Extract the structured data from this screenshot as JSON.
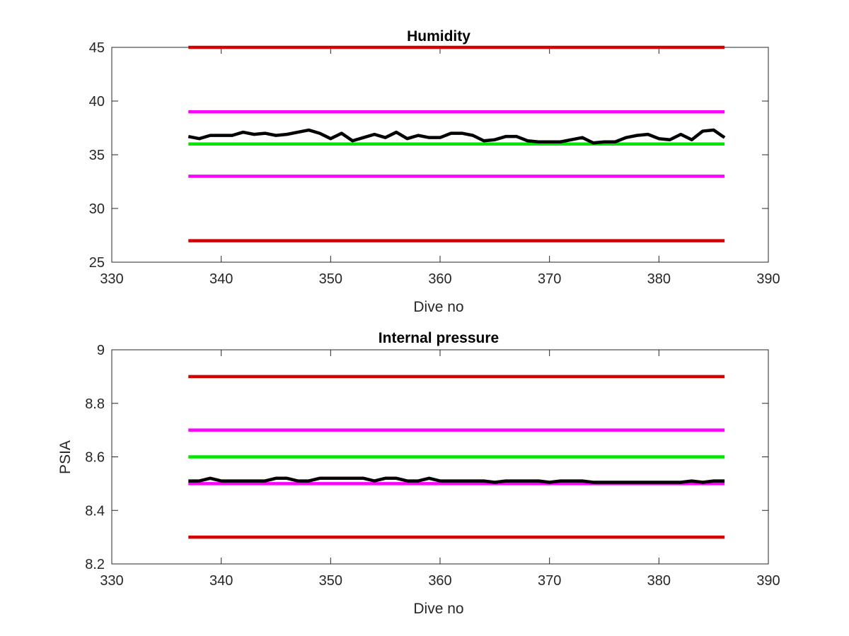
{
  "chart_data": [
    {
      "type": "line",
      "title": "Humidity",
      "xlabel": "Dive no",
      "ylabel": "",
      "xlim": [
        330,
        390
      ],
      "ylim": [
        25,
        45
      ],
      "xticks": [
        330,
        340,
        350,
        360,
        370,
        380,
        390
      ],
      "yticks": [
        25,
        30,
        35,
        40,
        45
      ],
      "grid": false,
      "series": [
        {
          "color": "#d40000",
          "x": [
            337,
            386
          ],
          "y": [
            45,
            45
          ]
        },
        {
          "color": "#ff00ff",
          "x": [
            337,
            386
          ],
          "y": [
            39,
            39
          ]
        },
        {
          "color": "#00e600",
          "x": [
            337,
            386
          ],
          "y": [
            36,
            36
          ]
        },
        {
          "color": "#ff00ff",
          "x": [
            337,
            386
          ],
          "y": [
            33,
            33
          ]
        },
        {
          "color": "#d40000",
          "x": [
            337,
            386
          ],
          "y": [
            27,
            27
          ]
        },
        {
          "color": "#000000",
          "x": [
            337,
            338,
            339,
            340,
            341,
            342,
            343,
            344,
            345,
            346,
            347,
            348,
            349,
            350,
            351,
            352,
            353,
            354,
            355,
            356,
            357,
            358,
            359,
            360,
            361,
            362,
            363,
            364,
            365,
            366,
            367,
            368,
            369,
            370,
            371,
            372,
            373,
            374,
            375,
            376,
            377,
            378,
            379,
            380,
            381,
            382,
            383,
            384,
            385,
            386
          ],
          "y": [
            36.7,
            36.5,
            36.8,
            36.8,
            36.8,
            37.1,
            36.9,
            37.0,
            36.8,
            36.9,
            37.1,
            37.3,
            37.0,
            36.5,
            37.0,
            36.3,
            36.6,
            36.9,
            36.6,
            37.1,
            36.5,
            36.8,
            36.6,
            36.6,
            37.0,
            37.0,
            36.8,
            36.3,
            36.4,
            36.7,
            36.7,
            36.3,
            36.2,
            36.2,
            36.2,
            36.4,
            36.6,
            36.1,
            36.2,
            36.2,
            36.6,
            36.8,
            36.9,
            36.5,
            36.4,
            36.9,
            36.4,
            37.2,
            37.3,
            36.6
          ]
        }
      ]
    },
    {
      "type": "line",
      "title": "Internal pressure",
      "xlabel": "Dive no",
      "ylabel": "PSIA",
      "xlim": [
        330,
        390
      ],
      "ylim": [
        8.2,
        9
      ],
      "xticks": [
        330,
        340,
        350,
        360,
        370,
        380,
        390
      ],
      "yticks": [
        8.2,
        8.4,
        8.6,
        8.8,
        9
      ],
      "grid": false,
      "series": [
        {
          "color": "#d40000",
          "x": [
            337,
            386
          ],
          "y": [
            8.9,
            8.9
          ]
        },
        {
          "color": "#ff00ff",
          "x": [
            337,
            386
          ],
          "y": [
            8.7,
            8.7
          ]
        },
        {
          "color": "#00e600",
          "x": [
            337,
            386
          ],
          "y": [
            8.6,
            8.6
          ]
        },
        {
          "color": "#ff00ff",
          "x": [
            337,
            386
          ],
          "y": [
            8.5,
            8.5
          ]
        },
        {
          "color": "#d40000",
          "x": [
            337,
            386
          ],
          "y": [
            8.3,
            8.3
          ]
        },
        {
          "color": "#000000",
          "x": [
            337,
            338,
            339,
            340,
            341,
            342,
            343,
            344,
            345,
            346,
            347,
            348,
            349,
            350,
            351,
            352,
            353,
            354,
            355,
            356,
            357,
            358,
            359,
            360,
            361,
            362,
            363,
            364,
            365,
            366,
            367,
            368,
            369,
            370,
            371,
            372,
            373,
            374,
            375,
            376,
            377,
            378,
            379,
            380,
            381,
            382,
            383,
            384,
            385,
            386
          ],
          "y": [
            8.51,
            8.51,
            8.52,
            8.51,
            8.51,
            8.51,
            8.51,
            8.51,
            8.52,
            8.52,
            8.51,
            8.51,
            8.52,
            8.52,
            8.52,
            8.52,
            8.52,
            8.51,
            8.52,
            8.52,
            8.51,
            8.51,
            8.52,
            8.51,
            8.51,
            8.51,
            8.51,
            8.51,
            8.505,
            8.51,
            8.51,
            8.51,
            8.51,
            8.505,
            8.51,
            8.51,
            8.51,
            8.505,
            8.505,
            8.505,
            8.505,
            8.505,
            8.505,
            8.505,
            8.505,
            8.505,
            8.51,
            8.505,
            8.51,
            8.51
          ]
        }
      ]
    }
  ]
}
